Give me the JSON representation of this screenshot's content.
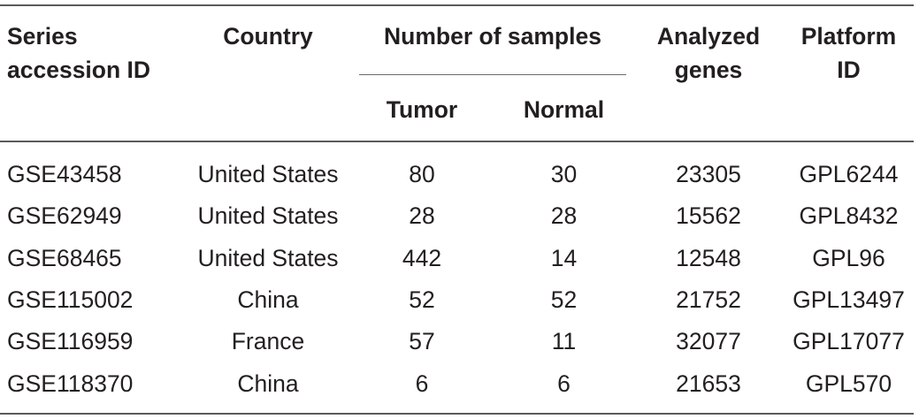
{
  "headers": {
    "series": [
      "Series",
      "accession ID"
    ],
    "country": "Country",
    "samples_group": "Number of samples",
    "tumor": "Tumor",
    "normal": "Normal",
    "genes": [
      "Analyzed",
      "genes"
    ],
    "platform": [
      "Platform",
      "ID"
    ]
  },
  "rows": [
    {
      "series": "GSE43458",
      "country": "United States",
      "tumor": "80",
      "normal": "30",
      "genes": "23305",
      "platform": "GPL6244"
    },
    {
      "series": "GSE62949",
      "country": "United States",
      "tumor": "28",
      "normal": "28",
      "genes": "15562",
      "platform": "GPL8432"
    },
    {
      "series": "GSE68465",
      "country": "United States",
      "tumor": "442",
      "normal": "14",
      "genes": "12548",
      "platform": "GPL96"
    },
    {
      "series": "GSE115002",
      "country": "China",
      "tumor": "52",
      "normal": "52",
      "genes": "21752",
      "platform": "GPL13497"
    },
    {
      "series": "GSE116959",
      "country": "France",
      "tumor": "57",
      "normal": "11",
      "genes": "32077",
      "platform": "GPL17077"
    },
    {
      "series": "GSE118370",
      "country": "China",
      "tumor": "6",
      "normal": "6",
      "genes": "21653",
      "platform": "GPL570"
    }
  ],
  "colors": {
    "text": "#231f20",
    "rule": "#5a5a5a"
  }
}
